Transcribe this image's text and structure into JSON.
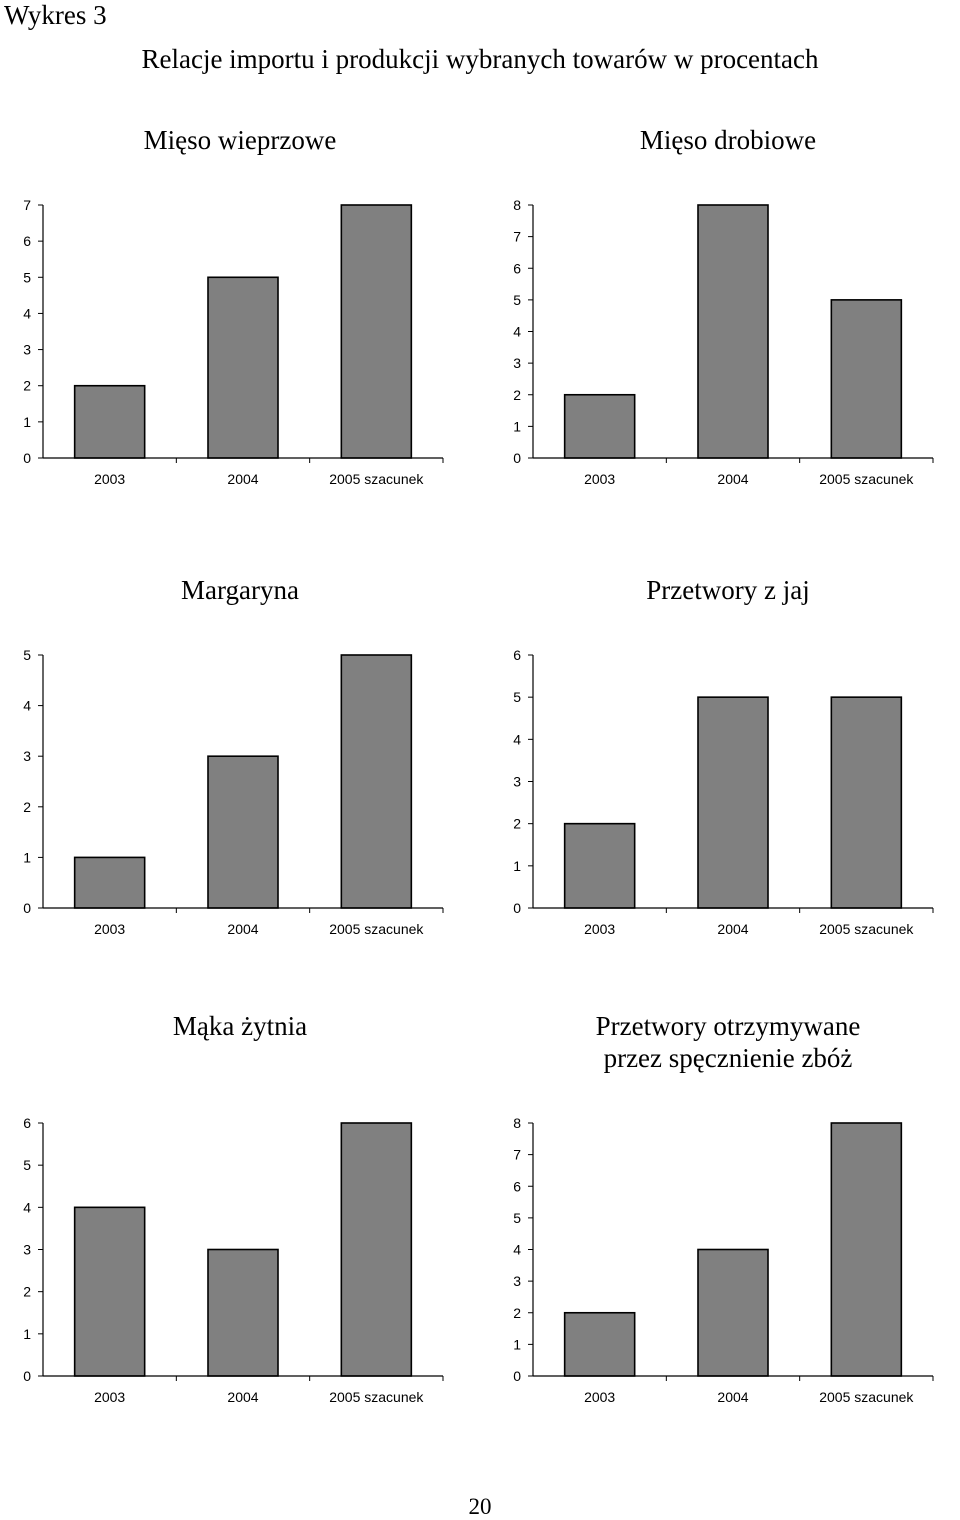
{
  "figure": {
    "label": "Wykres 3",
    "title": "Relacje importu i produkcji wybranych towarów w procentach"
  },
  "page_number": "20",
  "colors": {
    "bar_fill": "#808080",
    "bar_stroke": "#000000",
    "axis": "#000000"
  },
  "chart_data": [
    {
      "type": "bar",
      "title": [
        "Mięso wieprzowe"
      ],
      "categories": [
        "2003",
        "2004",
        "2005 szacunek"
      ],
      "values": [
        2,
        5,
        7
      ],
      "ylim": [
        0,
        7
      ],
      "yticks": [
        "0",
        "1",
        "2",
        "3",
        "4",
        "5",
        "6",
        "7"
      ],
      "xlabel": "",
      "ylabel": "",
      "grid": false
    },
    {
      "type": "bar",
      "title": [
        "Mięso drobiowe"
      ],
      "categories": [
        "2003",
        "2004",
        "2005 szacunek"
      ],
      "values": [
        2,
        8,
        5
      ],
      "ylim": [
        0,
        8
      ],
      "yticks": [
        "0",
        "1",
        "2",
        "3",
        "4",
        "5",
        "6",
        "7",
        "8"
      ],
      "xlabel": "",
      "ylabel": "",
      "grid": false
    },
    {
      "type": "bar",
      "title": [
        "Margaryna"
      ],
      "categories": [
        "2003",
        "2004",
        "2005 szacunek"
      ],
      "values": [
        1,
        3,
        5
      ],
      "ylim": [
        0,
        5
      ],
      "yticks": [
        "0",
        "1",
        "2",
        "3",
        "4",
        "5"
      ],
      "xlabel": "",
      "ylabel": "",
      "grid": false
    },
    {
      "type": "bar",
      "title": [
        "Przetwory z jaj"
      ],
      "categories": [
        "2003",
        "2004",
        "2005 szacunek"
      ],
      "values": [
        2,
        5,
        5
      ],
      "ylim": [
        0,
        6
      ],
      "yticks": [
        "0",
        "1",
        "2",
        "3",
        "4",
        "5",
        "6"
      ],
      "xlabel": "",
      "ylabel": "",
      "grid": false
    },
    {
      "type": "bar",
      "title": [
        "Mąka żytnia"
      ],
      "categories": [
        "2003",
        "2004",
        "2005 szacunek"
      ],
      "values": [
        4,
        3,
        6
      ],
      "ylim": [
        0,
        6
      ],
      "yticks": [
        "0",
        "1",
        "2",
        "3",
        "4",
        "5",
        "6"
      ],
      "xlabel": "",
      "ylabel": "",
      "grid": false
    },
    {
      "type": "bar",
      "title": [
        "Przetwory otrzymywane",
        "przez spęcznienie zbóż"
      ],
      "categories": [
        "2003",
        "2004",
        "2005 szacunek"
      ],
      "values": [
        2,
        4,
        8
      ],
      "ylim": [
        0,
        8
      ],
      "yticks": [
        "0",
        "1",
        "2",
        "3",
        "4",
        "5",
        "6",
        "7",
        "8"
      ],
      "xlabel": "",
      "ylabel": "",
      "grid": false
    }
  ]
}
